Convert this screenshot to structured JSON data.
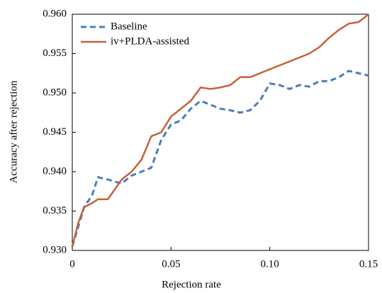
{
  "chart_data": {
    "type": "line",
    "xlabel": "Rejection rate",
    "ylabel": "Accuracy after rejection",
    "x": [
      0,
      0.003,
      0.006,
      0.01,
      0.013,
      0.018,
      0.025,
      0.03,
      0.035,
      0.04,
      0.045,
      0.05,
      0.055,
      0.06,
      0.065,
      0.07,
      0.075,
      0.08,
      0.085,
      0.09,
      0.095,
      0.1,
      0.105,
      0.11,
      0.115,
      0.12,
      0.125,
      0.13,
      0.135,
      0.14,
      0.145,
      0.15
    ],
    "series": [
      {
        "name": "Baseline",
        "color": "#4a7ebb",
        "dashed": true,
        "values": [
          0.9305,
          0.933,
          0.9355,
          0.937,
          0.9393,
          0.939,
          0.9385,
          0.9395,
          0.94,
          0.9405,
          0.944,
          0.946,
          0.9465,
          0.948,
          0.949,
          0.9485,
          0.948,
          0.9478,
          0.9475,
          0.9478,
          0.949,
          0.9512,
          0.951,
          0.9505,
          0.951,
          0.9508,
          0.9515,
          0.9515,
          0.952,
          0.9528,
          0.9525,
          0.9522
        ]
      },
      {
        "name": "iv+PLDA-assisted",
        "color": "#c8603a",
        "dashed": false,
        "values": [
          0.9305,
          0.9335,
          0.9355,
          0.936,
          0.9365,
          0.9365,
          0.939,
          0.94,
          0.9415,
          0.9445,
          0.945,
          0.947,
          0.948,
          0.949,
          0.9507,
          0.9505,
          0.9507,
          0.951,
          0.952,
          0.952,
          0.9525,
          0.953,
          0.9535,
          0.954,
          0.9545,
          0.955,
          0.9558,
          0.957,
          0.958,
          0.9588,
          0.959,
          0.96
        ]
      }
    ],
    "xlim": [
      0,
      0.15
    ],
    "xticks": [
      0,
      0.05,
      {
        "value": 0.1,
        "label": "0.10"
      },
      0.15
    ],
    "ylim": [
      0.93,
      0.96
    ],
    "yticks": [
      {
        "value": 0.93,
        "label": "0.930"
      },
      {
        "value": 0.935,
        "label": "0.935"
      },
      {
        "value": 0.94,
        "label": "0.940"
      },
      {
        "value": 0.945,
        "label": "0.945"
      },
      {
        "value": 0.95,
        "label": "0.950"
      },
      {
        "value": 0.955,
        "label": "0.955"
      },
      {
        "value": 0.96,
        "label": "0.960"
      }
    ],
    "legend": "upper-left"
  }
}
